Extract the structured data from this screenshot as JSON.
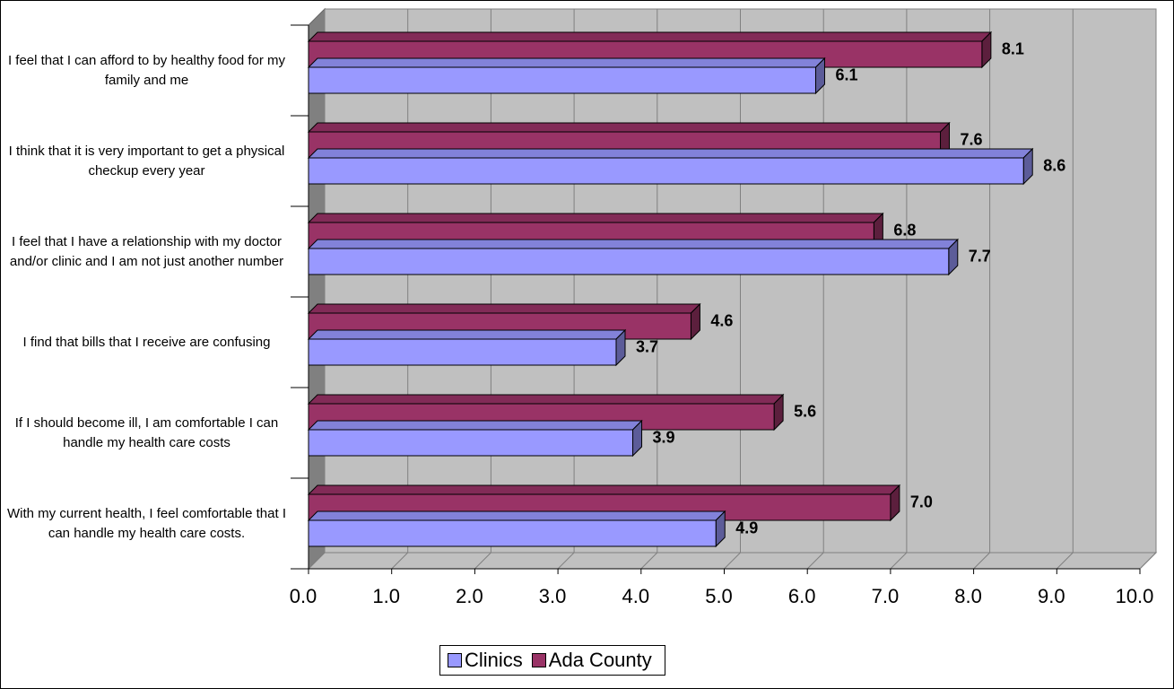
{
  "chart_data": {
    "type": "bar3d_horizontal",
    "categories": [
      "I feel that I can afford to by healthy food for my family and me",
      "I think that it is very important to get a physical checkup every year",
      "I feel that I have a relationship with my doctor and/or clinic and I am not just another number",
      "I find that bills that I receive are confusing",
      "If I should become ill, I am comfortable I can handle my health care costs",
      "With my current health, I feel comfortable that I can handle my health care costs."
    ],
    "series": [
      {
        "name": "Clinics",
        "color": "#9999ff",
        "values": [
          6.1,
          8.6,
          7.7,
          3.7,
          3.9,
          4.9
        ],
        "value_labels": [
          "6.1",
          "8.6",
          "7.7",
          "3.7",
          "3.9",
          "4.9"
        ]
      },
      {
        "name": "Ada County",
        "color": "#993366",
        "values": [
          8.1,
          7.6,
          6.8,
          4.6,
          5.6,
          7.0
        ],
        "value_labels": [
          "8.1",
          "7.6",
          "6.8",
          "4.6",
          "5.6",
          "7.0"
        ]
      }
    ],
    "xlim": [
      0,
      10
    ],
    "xticks": [
      {
        "value": 0,
        "label": "0.0"
      },
      {
        "value": 1,
        "label": "1.0"
      },
      {
        "value": 2,
        "label": "2.0"
      },
      {
        "value": 3,
        "label": "3.0"
      },
      {
        "value": 4,
        "label": "4.0"
      },
      {
        "value": 5,
        "label": "5.0"
      },
      {
        "value": 6,
        "label": "6.0"
      },
      {
        "value": 7,
        "label": "7.0"
      },
      {
        "value": 8,
        "label": "8.0"
      },
      {
        "value": 9,
        "label": "9.0"
      },
      {
        "value": 10,
        "label": "10.0"
      }
    ],
    "grid": true,
    "legend": "bottom"
  }
}
